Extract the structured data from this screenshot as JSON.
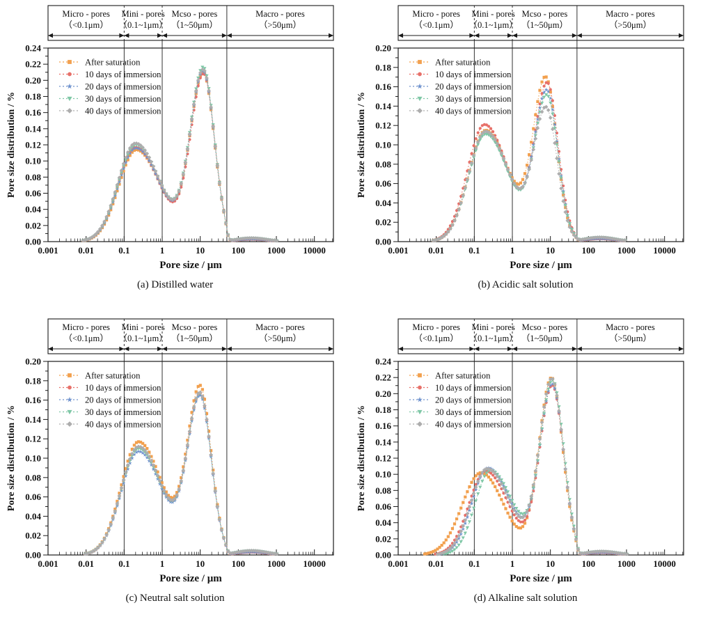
{
  "figure": {
    "background": "#ffffff",
    "text_color": "#111111",
    "frame_color": "#1a1a1a"
  },
  "chart_data": [
    {
      "id": "a",
      "type": "line",
      "caption": "(a) Distilled water",
      "xlabel": "Pore size / μm",
      "ylabel": "Pore size distribution / %",
      "xscale": "log",
      "xlim": [
        0.001,
        31623
      ],
      "xtick_labels": [
        "0.001",
        "0.01",
        "0.1",
        "1",
        "10",
        "100",
        "1000",
        "10000"
      ],
      "ylim": [
        0,
        0.24
      ],
      "ytick_major": 0.02,
      "ytick_minor": 0.01,
      "grid": false,
      "legend_position": "top-left",
      "band_boundaries_um": [
        0.1,
        1,
        50
      ],
      "pore_class_bands": [
        {
          "label": "Micro - pores",
          "range": "（<0.1μm）"
        },
        {
          "label": "Mini - pores",
          "range": "（0.1~1μm）"
        },
        {
          "label": "Mcso - pores",
          "range": "（1~50μm）"
        },
        {
          "label": "Macro - pores",
          "range": "（>50μm）"
        }
      ],
      "series": [
        {
          "name": "After saturation",
          "color": "#F2A04E",
          "marker": "square",
          "profile": {
            "peak1": [
              0.114,
              -0.68,
              0.46,
              0.64
            ],
            "peak2": [
              0.207,
              1.08,
              0.345,
              0.29
            ],
            "bump": [
              0.003,
              2.35,
              0.4
            ],
            "cutoff_log10": [
              1.72,
              0.028
            ]
          },
          "key_points": {
            "peak1_um": 0.21,
            "peak1_pct": 0.114,
            "valley_pct": 0.063,
            "peak2_um": 12,
            "peak2_pct": 0.207
          }
        },
        {
          "name": "10 days of immersion",
          "color": "#E77069",
          "marker": "circle",
          "profile": {
            "peak1": [
              0.117,
              -0.7,
              0.46,
              0.64
            ],
            "peak2": [
              0.206,
              1.09,
              0.345,
              0.29
            ],
            "bump": [
              0.003,
              2.35,
              0.4
            ],
            "cutoff_log10": [
              1.72,
              0.028
            ]
          },
          "key_points": {
            "peak1_um": 0.2,
            "peak1_pct": 0.117,
            "valley_pct": 0.063,
            "peak2_um": 12,
            "peak2_pct": 0.206
          }
        },
        {
          "name": "20 days of immersion",
          "color": "#7093CE",
          "marker": "star",
          "profile": {
            "peak1": [
              0.116,
              -0.69,
              0.46,
              0.64
            ],
            "peak2": [
              0.209,
              1.08,
              0.345,
              0.29
            ],
            "bump": [
              0.003,
              2.35,
              0.4
            ],
            "cutoff_log10": [
              1.72,
              0.028
            ]
          },
          "key_points": {
            "peak1_um": 0.2,
            "peak1_pct": 0.116,
            "valley_pct": 0.063,
            "peak2_um": 12,
            "peak2_pct": 0.209
          }
        },
        {
          "name": "30 days of immersion",
          "color": "#7FC7A6",
          "marker": "triangle-down",
          "profile": {
            "peak1": [
              0.12,
              -0.69,
              0.46,
              0.64
            ],
            "peak2": [
              0.214,
              1.08,
              0.345,
              0.29
            ],
            "bump": [
              0.0045,
              2.35,
              0.4
            ],
            "cutoff_log10": [
              1.72,
              0.028
            ]
          },
          "key_points": {
            "peak1_um": 0.2,
            "peak1_pct": 0.12,
            "valley_pct": 0.064,
            "peak2_um": 12,
            "peak2_pct": 0.214
          }
        },
        {
          "name": "40 days of immersion",
          "color": "#ADADAD",
          "marker": "diamond",
          "profile": {
            "peak1": [
              0.122,
              -0.7,
              0.46,
              0.64
            ],
            "peak2": [
              0.211,
              1.08,
              0.345,
              0.29
            ],
            "bump": [
              0.0045,
              2.35,
              0.4
            ],
            "cutoff_log10": [
              1.72,
              0.028
            ]
          },
          "key_points": {
            "peak1_um": 0.2,
            "peak1_pct": 0.122,
            "valley_pct": 0.064,
            "peak2_um": 12,
            "peak2_pct": 0.211
          }
        }
      ]
    },
    {
      "id": "b",
      "type": "line",
      "caption": "(b) Acidic salt solution",
      "xlabel": "Pore size / μm",
      "ylabel": "Pore size distribution / %",
      "xscale": "log",
      "xlim": [
        0.001,
        31623
      ],
      "xtick_labels": [
        "0.001",
        "0.01",
        "0.1",
        "1",
        "10",
        "100",
        "1000",
        "10000"
      ],
      "ylim": [
        0,
        0.2
      ],
      "ytick_major": 0.02,
      "ytick_minor": 0.01,
      "grid": false,
      "legend_position": "top-left",
      "band_boundaries_um": [
        0.1,
        1,
        50
      ],
      "pore_class_bands": [
        {
          "label": "Micro - pores",
          "range": "（<0.1μm）"
        },
        {
          "label": "Mini - pores",
          "range": "（0.1~1μm）"
        },
        {
          "label": "Mcso - pores",
          "range": "（1~50μm）"
        },
        {
          "label": "Macro - pores",
          "range": "（>50μm）"
        }
      ],
      "series": [
        {
          "name": "After saturation",
          "color": "#F2A04E",
          "marker": "square",
          "profile": {
            "peak1": [
              0.115,
              -0.7,
              0.45,
              0.62
            ],
            "peak2": [
              0.166,
              0.88,
              0.33,
              0.29
            ],
            "bump": [
              0.003,
              2.3,
              0.4
            ],
            "cutoff_log10": [
              1.72,
              0.028
            ]
          },
          "key_points": {
            "peak1_um": 0.2,
            "peak1_pct": 0.115,
            "valley_pct": 0.06,
            "peak2_um": 7.6,
            "peak2_pct": 0.166
          }
        },
        {
          "name": "10 days of immersion",
          "color": "#E77069",
          "marker": "circle",
          "profile": {
            "peak1": [
              0.121,
              -0.73,
              0.45,
              0.62
            ],
            "peak2": [
              0.161,
              0.92,
              0.33,
              0.29
            ],
            "bump": [
              0.003,
              2.3,
              0.4
            ],
            "cutoff_log10": [
              1.72,
              0.028
            ]
          },
          "key_points": {
            "peak1_um": 0.19,
            "peak1_pct": 0.121,
            "valley_pct": 0.061,
            "peak2_um": 8.3,
            "peak2_pct": 0.161
          }
        },
        {
          "name": "20 days of immersion",
          "color": "#7093CE",
          "marker": "star",
          "profile": {
            "peak1": [
              0.113,
              -0.7,
              0.45,
              0.62
            ],
            "peak2": [
              0.153,
              0.91,
              0.33,
              0.29
            ],
            "bump": [
              0.003,
              2.3,
              0.4
            ],
            "cutoff_log10": [
              1.72,
              0.028
            ]
          },
          "key_points": {
            "peak1_um": 0.2,
            "peak1_pct": 0.113,
            "valley_pct": 0.06,
            "peak2_um": 8.1,
            "peak2_pct": 0.153
          }
        },
        {
          "name": "30 days of immersion",
          "color": "#7FC7A6",
          "marker": "triangle-down",
          "profile": {
            "peak1": [
              0.111,
              -0.7,
              0.45,
              0.62
            ],
            "peak2": [
              0.148,
              0.91,
              0.33,
              0.29
            ],
            "bump": [
              0.0045,
              2.3,
              0.4
            ],
            "cutoff_log10": [
              1.72,
              0.028
            ]
          },
          "key_points": {
            "peak1_um": 0.2,
            "peak1_pct": 0.111,
            "valley_pct": 0.06,
            "peak2_um": 8.1,
            "peak2_pct": 0.148
          }
        },
        {
          "name": "40 days of immersion",
          "color": "#ADADAD",
          "marker": "diamond",
          "profile": {
            "peak1": [
              0.114,
              -0.7,
              0.45,
              0.62
            ],
            "peak2": [
              0.135,
              0.89,
              0.33,
              0.29
            ],
            "bump": [
              0.0045,
              2.3,
              0.4
            ],
            "cutoff_log10": [
              1.72,
              0.028
            ]
          },
          "key_points": {
            "peak1_um": 0.2,
            "peak1_pct": 0.114,
            "valley_pct": 0.06,
            "peak2_um": 7.8,
            "peak2_pct": 0.135
          }
        }
      ]
    },
    {
      "id": "c",
      "type": "line",
      "caption": "(c) Neutral salt solution",
      "xlabel": "Pore size / μm",
      "ylabel": "Pore size distribution / %",
      "xscale": "log",
      "xlim": [
        0.001,
        31623
      ],
      "xtick_labels": [
        "0.001",
        "0.01",
        "0.1",
        "1",
        "10",
        "100",
        "1000",
        "10000"
      ],
      "ylim": [
        0,
        0.2
      ],
      "ytick_major": 0.02,
      "ytick_minor": 0.01,
      "grid": false,
      "legend_position": "top-left",
      "band_boundaries_um": [
        0.1,
        1,
        50
      ],
      "pore_class_bands": [
        {
          "label": "Micro - pores",
          "range": "（<0.1μm）"
        },
        {
          "label": "Mini - pores",
          "range": "（0.1~1μm）"
        },
        {
          "label": "Mcso - pores",
          "range": "（1~50μm）"
        },
        {
          "label": "Macro - pores",
          "range": "（>50μm）"
        }
      ],
      "series": [
        {
          "name": "After saturation",
          "color": "#F2A04E",
          "marker": "square",
          "profile": {
            "peak1": [
              0.117,
              -0.62,
              0.46,
              0.63
            ],
            "peak2": [
              0.171,
              1.0,
              0.335,
              0.29
            ],
            "bump": [
              0.003,
              2.35,
              0.4
            ],
            "cutoff_log10": [
              1.72,
              0.028
            ]
          },
          "key_points": {
            "peak1_um": 0.24,
            "peak1_pct": 0.117,
            "valley_pct": 0.061,
            "peak2_um": 10,
            "peak2_pct": 0.171
          }
        },
        {
          "name": "10 days of immersion",
          "color": "#E77069",
          "marker": "circle",
          "profile": {
            "peak1": [
              0.111,
              -0.62,
              0.46,
              0.63
            ],
            "peak2": [
              0.163,
              1.0,
              0.335,
              0.29
            ],
            "bump": [
              0.003,
              2.35,
              0.4
            ],
            "cutoff_log10": [
              1.72,
              0.028
            ]
          },
          "key_points": {
            "peak1_um": 0.24,
            "peak1_pct": 0.111,
            "valley_pct": 0.06,
            "peak2_um": 10,
            "peak2_pct": 0.163
          }
        },
        {
          "name": "20 days of immersion",
          "color": "#7093CE",
          "marker": "star",
          "profile": {
            "peak1": [
              0.107,
              -0.62,
              0.46,
              0.63
            ],
            "peak2": [
              0.161,
              1.0,
              0.335,
              0.29
            ],
            "bump": [
              0.003,
              2.35,
              0.4
            ],
            "cutoff_log10": [
              1.72,
              0.028
            ]
          },
          "key_points": {
            "peak1_um": 0.24,
            "peak1_pct": 0.107,
            "valley_pct": 0.059,
            "peak2_um": 10,
            "peak2_pct": 0.161
          }
        },
        {
          "name": "30 days of immersion",
          "color": "#7FC7A6",
          "marker": "triangle-down",
          "profile": {
            "peak1": [
              0.11,
              -0.62,
              0.46,
              0.63
            ],
            "peak2": [
              0.163,
              1.0,
              0.335,
              0.29
            ],
            "bump": [
              0.0045,
              2.35,
              0.4
            ],
            "cutoff_log10": [
              1.72,
              0.028
            ]
          },
          "key_points": {
            "peak1_um": 0.24,
            "peak1_pct": 0.11,
            "valley_pct": 0.06,
            "peak2_um": 10,
            "peak2_pct": 0.163
          }
        },
        {
          "name": "40 days of immersion",
          "color": "#ADADAD",
          "marker": "diamond",
          "profile": {
            "peak1": [
              0.112,
              -0.62,
              0.46,
              0.63
            ],
            "peak2": [
              0.164,
              1.0,
              0.335,
              0.29
            ],
            "bump": [
              0.0045,
              2.35,
              0.4
            ],
            "cutoff_log10": [
              1.72,
              0.028
            ]
          },
          "key_points": {
            "peak1_um": 0.24,
            "peak1_pct": 0.112,
            "valley_pct": 0.06,
            "peak2_um": 10,
            "peak2_pct": 0.164
          }
        }
      ]
    },
    {
      "id": "d",
      "type": "line",
      "caption": "(d) Alkaline salt solution",
      "xlabel": "Pore size / μm",
      "ylabel": "Pore size distribution / %",
      "xscale": "log",
      "xlim": [
        0.001,
        31623
      ],
      "xtick_labels": [
        "0.001",
        "0.01",
        "0.1",
        "1",
        "10",
        "100",
        "1000",
        "10000"
      ],
      "ylim": [
        0,
        0.24
      ],
      "ytick_major": 0.02,
      "ytick_minor": 0.01,
      "grid": false,
      "legend_position": "top-left",
      "band_boundaries_um": [
        0.1,
        1,
        50
      ],
      "pore_class_bands": [
        {
          "label": "Micro - pores",
          "range": "（<0.1μm）"
        },
        {
          "label": "Mini - pores",
          "range": "（0.1~1μm）"
        },
        {
          "label": "Mcso - pores",
          "range": "（1~50μm）"
        },
        {
          "label": "Macro - pores",
          "range": "（>50μm）"
        }
      ],
      "series": [
        {
          "name": "After saturation",
          "color": "#F2A04E",
          "marker": "square",
          "profile": {
            "peak1": [
              0.102,
              -0.82,
              0.5,
              0.6
            ],
            "peak2": [
              0.219,
              1.03,
              0.33,
              0.295
            ],
            "bump": [
              0.003,
              2.35,
              0.4
            ],
            "cutoff_log10": [
              1.72,
              0.028
            ]
          },
          "key_points": {
            "peak1_um": 0.15,
            "peak1_pct": 0.102,
            "valley_pct": 0.058,
            "peak2_um": 10.7,
            "peak2_pct": 0.219
          }
        },
        {
          "name": "10 days of immersion",
          "color": "#E77069",
          "marker": "circle",
          "profile": {
            "peak1": [
              0.104,
              -0.7,
              0.44,
              0.6
            ],
            "peak2": [
              0.209,
              1.05,
              0.33,
              0.295
            ],
            "bump": [
              0.003,
              2.35,
              0.4
            ],
            "cutoff_log10": [
              1.72,
              0.028
            ]
          },
          "key_points": {
            "peak1_um": 0.2,
            "peak1_pct": 0.104,
            "valley_pct": 0.06,
            "peak2_um": 11.2,
            "peak2_pct": 0.209
          }
        },
        {
          "name": "20 days of immersion",
          "color": "#7093CE",
          "marker": "star",
          "profile": {
            "peak1": [
              0.108,
              -0.64,
              0.42,
              0.6
            ],
            "peak2": [
              0.21,
              1.05,
              0.33,
              0.295
            ],
            "bump": [
              0.003,
              2.35,
              0.4
            ],
            "cutoff_log10": [
              1.72,
              0.028
            ]
          },
          "key_points": {
            "peak1_um": 0.23,
            "peak1_pct": 0.108,
            "valley_pct": 0.061,
            "peak2_um": 11.2,
            "peak2_pct": 0.21
          }
        },
        {
          "name": "30 days of immersion",
          "color": "#7FC7A6",
          "marker": "triangle-down",
          "profile": {
            "peak1": [
              0.105,
              -0.58,
              0.4,
              0.6
            ],
            "peak2": [
              0.214,
              1.06,
              0.33,
              0.295
            ],
            "bump": [
              0.0045,
              2.35,
              0.4
            ],
            "cutoff_log10": [
              1.72,
              0.028
            ]
          },
          "key_points": {
            "peak1_um": 0.26,
            "peak1_pct": 0.105,
            "valley_pct": 0.061,
            "peak2_um": 11.5,
            "peak2_pct": 0.214
          }
        },
        {
          "name": "40 days of immersion",
          "color": "#ADADAD",
          "marker": "diamond",
          "profile": {
            "peak1": [
              0.107,
              -0.66,
              0.43,
              0.6
            ],
            "peak2": [
              0.217,
              1.04,
              0.33,
              0.295
            ],
            "bump": [
              0.0045,
              2.35,
              0.4
            ],
            "cutoff_log10": [
              1.72,
              0.028
            ]
          },
          "key_points": {
            "peak1_um": 0.22,
            "peak1_pct": 0.107,
            "valley_pct": 0.061,
            "peak2_um": 11,
            "peak2_pct": 0.217
          }
        }
      ]
    }
  ]
}
